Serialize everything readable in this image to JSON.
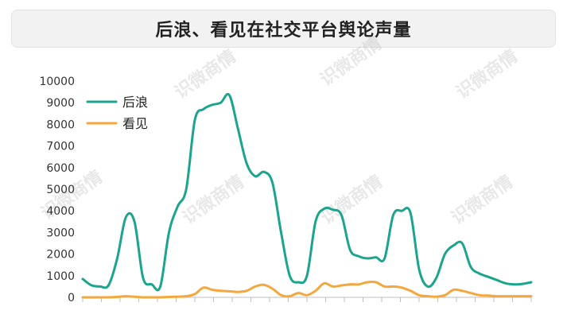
{
  "title": "后浪、看见在社交平台舆论声量",
  "watermark": "识微商情",
  "colors": {
    "houlang": "#1aa58c",
    "kanjian": "#f5a73c",
    "axis": "#bfbfbf",
    "tick": "#333333"
  },
  "chart_data": {
    "type": "line",
    "title": "后浪、看见在社交平台舆论声量",
    "xlabel": "",
    "ylabel": "",
    "ylim": [
      0,
      10000
    ],
    "yticks": [
      0,
      1000,
      2000,
      3000,
      4000,
      5000,
      6000,
      7000,
      8000,
      9000,
      10000
    ],
    "grid": false,
    "legend": "top-left",
    "x_tick_labels_note": "",
    "series": [
      {
        "name": "后浪",
        "values": [
          850,
          560,
          500,
          560,
          1800,
          3700,
          3500,
          900,
          600,
          500,
          3000,
          4200,
          5000,
          8200,
          8700,
          8900,
          9000,
          9350,
          7800,
          6200,
          5600,
          5800,
          5300,
          3000,
          1000,
          700,
          1000,
          3500,
          4100,
          4050,
          3800,
          2200,
          1900,
          1800,
          1850,
          1800,
          3800,
          4000,
          3900,
          1300,
          500,
          900,
          2000,
          2400,
          2500,
          1400,
          1100,
          950,
          800,
          650,
          600,
          620,
          700
        ]
      },
      {
        "name": "看见",
        "values": [
          0,
          0,
          0,
          0,
          20,
          50,
          30,
          0,
          0,
          0,
          20,
          30,
          50,
          150,
          450,
          350,
          300,
          280,
          250,
          300,
          500,
          580,
          400,
          100,
          50,
          200,
          100,
          300,
          650,
          500,
          550,
          600,
          600,
          700,
          700,
          500,
          500,
          450,
          300,
          100,
          50,
          30,
          100,
          350,
          300,
          200,
          100,
          80,
          50,
          50,
          50,
          50,
          50
        ]
      }
    ]
  }
}
